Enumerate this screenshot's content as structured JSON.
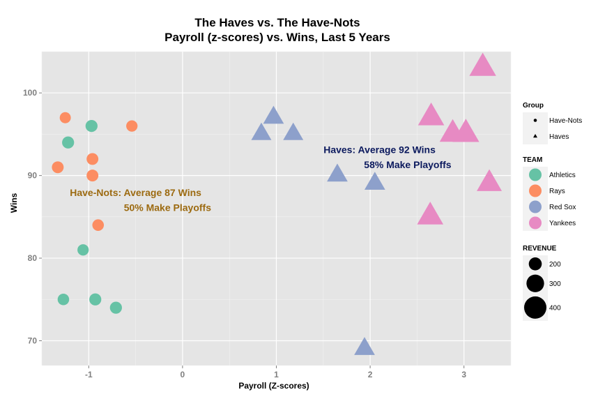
{
  "chart_data": {
    "type": "scatter",
    "title": "The Haves vs. The Have-Nots",
    "subtitle": "Payroll (z-scores) vs. Wins, Last 5 Years",
    "xlabel": "Payroll (Z-scores)",
    "ylabel": "Wins",
    "xlim": [
      -1.5,
      3.5
    ],
    "ylim": [
      67,
      105
    ],
    "x_ticks": [
      -1,
      0,
      1,
      2,
      3
    ],
    "x_tick_labels": [
      "-1",
      "0",
      "1",
      "2",
      "3"
    ],
    "y_ticks": [
      70,
      80,
      90,
      100
    ],
    "y_tick_labels": [
      "70",
      "80",
      "90",
      "100"
    ],
    "grid": true,
    "legend_position": "right",
    "colors": {
      "panel": "#e5e5e5",
      "grid_major": "#ffffff",
      "grid_minor": "#f2f2f2",
      "Athletics": "#66c2a5",
      "Rays": "#fc8d62",
      "Red Sox": "#8da0cb",
      "Yankees": "#e78ac3",
      "have_nots_annotation": "#9c6a10",
      "haves_annotation": "#0c1a5e",
      "legend_key_bg": "#f2f2f2"
    },
    "series": [
      {
        "name": "Athletics",
        "group": "Have-Nots",
        "shape": "circle",
        "points": [
          {
            "x": -0.97,
            "y": 96,
            "revenue": 180
          },
          {
            "x": -1.22,
            "y": 94,
            "revenue": 180
          },
          {
            "x": -1.06,
            "y": 81,
            "revenue": 165
          },
          {
            "x": -1.27,
            "y": 75,
            "revenue": 170
          },
          {
            "x": -0.93,
            "y": 75,
            "revenue": 180
          },
          {
            "x": -0.71,
            "y": 74,
            "revenue": 180
          }
        ]
      },
      {
        "name": "Rays",
        "group": "Have-Nots",
        "shape": "circle",
        "points": [
          {
            "x": -1.25,
            "y": 97,
            "revenue": 160
          },
          {
            "x": -0.54,
            "y": 96,
            "revenue": 165
          },
          {
            "x": -0.96,
            "y": 92,
            "revenue": 175
          },
          {
            "x": -1.33,
            "y": 91,
            "revenue": 175
          },
          {
            "x": -0.96,
            "y": 90,
            "revenue": 175
          },
          {
            "x": -0.9,
            "y": 84,
            "revenue": 170
          }
        ]
      },
      {
        "name": "Red Sox",
        "group": "Haves",
        "shape": "triangle",
        "points": [
          {
            "x": 0.97,
            "y": 97,
            "revenue": 300
          },
          {
            "x": 0.84,
            "y": 95,
            "revenue": 290
          },
          {
            "x": 1.18,
            "y": 95,
            "revenue": 290
          },
          {
            "x": 1.65,
            "y": 90,
            "revenue": 300
          },
          {
            "x": 2.05,
            "y": 89,
            "revenue": 300
          },
          {
            "x": 1.94,
            "y": 69,
            "revenue": 300
          }
        ]
      },
      {
        "name": "Yankees",
        "group": "Haves",
        "shape": "triangle",
        "points": [
          {
            "x": 3.2,
            "y": 103,
            "revenue": 410
          },
          {
            "x": 2.65,
            "y": 97,
            "revenue": 400
          },
          {
            "x": 2.88,
            "y": 95,
            "revenue": 400
          },
          {
            "x": 3.02,
            "y": 95,
            "revenue": 410
          },
          {
            "x": 3.27,
            "y": 89,
            "revenue": 380
          },
          {
            "x": 2.64,
            "y": 85,
            "revenue": 400
          }
        ]
      }
    ],
    "annotations": [
      {
        "text": "Have-Nots: Average 87 Wins",
        "x": -0.5,
        "y": 87.5,
        "anchor": "middle",
        "color_key": "have_nots_annotation"
      },
      {
        "text": "50% Make Playoffs",
        "x": -0.16,
        "y": 85.7,
        "anchor": "middle",
        "color_key": "have_nots_annotation"
      },
      {
        "text": "Haves: Average 92 Wins",
        "x": 2.1,
        "y": 92.7,
        "anchor": "middle",
        "color_key": "haves_annotation"
      },
      {
        "text": "58% Make Playoffs",
        "x": 2.4,
        "y": 90.9,
        "anchor": "middle",
        "color_key": "haves_annotation"
      }
    ],
    "legends": {
      "group": {
        "title": "Group",
        "items": [
          {
            "label": "Have-Nots",
            "shape": "circle"
          },
          {
            "label": "Haves",
            "shape": "triangle"
          }
        ]
      },
      "team": {
        "title": "TEAM",
        "items": [
          {
            "label": "Athletics",
            "color_key": "Athletics"
          },
          {
            "label": "Rays",
            "color_key": "Rays"
          },
          {
            "label": "Red Sox",
            "color_key": "Red Sox"
          },
          {
            "label": "Yankees",
            "color_key": "Yankees"
          }
        ]
      },
      "revenue": {
        "title": "REVENUE",
        "items": [
          {
            "label": "200",
            "value": 200
          },
          {
            "label": "300",
            "value": 300
          },
          {
            "label": "400",
            "value": 400
          }
        ]
      }
    }
  }
}
